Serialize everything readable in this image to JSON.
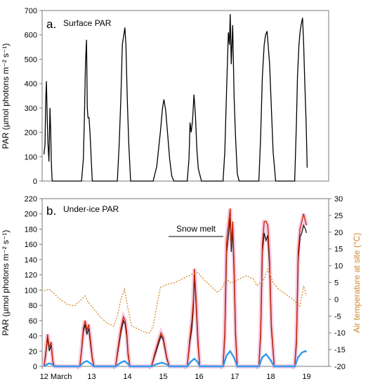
{
  "chart_data": [
    {
      "panel_label": "a.",
      "title": "Surface PAR",
      "type": "line",
      "ylabel": "PAR (µmol photons m⁻² s⁻¹)",
      "ylim": [
        0,
        700
      ],
      "yticks": [
        0,
        100,
        200,
        300,
        400,
        500,
        600,
        700
      ],
      "x_domain_days": [
        12,
        20
      ],
      "grid": false,
      "daily_peaks": [
        {
          "day": "12 March",
          "peak": 410
        },
        {
          "day": "13",
          "peak": 580
        },
        {
          "day": "14",
          "peak": 630
        },
        {
          "day": "15",
          "peak": 335
        },
        {
          "day": "16",
          "peak": 355
        },
        {
          "day": "17",
          "peak": 685
        },
        {
          "day": "18",
          "peak": 615
        },
        {
          "day": "19",
          "peak": 670
        }
      ],
      "series": [
        {
          "color": "#000000",
          "x": [
            12.05,
            12.08,
            12.1,
            12.12,
            12.14,
            12.16,
            12.19,
            12.22,
            12.24,
            12.26,
            12.28,
            12.32,
            13.1,
            13.15,
            13.18,
            13.21,
            13.24,
            13.26,
            13.28,
            13.31,
            13.34,
            13.37,
            13.4,
            13.45,
            14.1,
            14.15,
            14.2,
            14.24,
            14.28,
            14.31,
            14.34,
            14.38,
            14.42,
            14.47,
            15.1,
            15.2,
            15.3,
            15.36,
            15.4,
            15.45,
            15.5,
            15.56,
            15.62,
            15.68,
            16.05,
            16.1,
            16.13,
            16.16,
            16.2,
            16.24,
            16.28,
            16.32,
            16.36,
            16.45,
            17.05,
            17.1,
            17.15,
            17.18,
            17.2,
            17.23,
            17.25,
            17.28,
            17.32,
            17.36,
            17.4,
            17.45,
            17.5,
            18.05,
            18.1,
            18.15,
            18.2,
            18.24,
            18.28,
            18.31,
            18.35,
            18.4,
            18.45,
            18.52,
            19.05,
            19.1,
            19.13,
            19.17,
            19.2,
            19.23,
            19.27,
            19.3,
            19.33,
            19.37,
            19.4
          ],
          "y": [
            110,
            150,
            330,
            410,
            280,
            160,
            80,
            300,
            200,
            60,
            0,
            0,
            0,
            90,
            260,
            480,
            580,
            300,
            260,
            260,
            190,
            90,
            0,
            0,
            0,
            150,
            350,
            560,
            600,
            630,
            560,
            320,
            150,
            0,
            0,
            60,
            200,
            300,
            335,
            290,
            200,
            90,
            20,
            0,
            0,
            90,
            240,
            200,
            250,
            355,
            270,
            130,
            50,
            0,
            0,
            120,
            370,
            520,
            610,
            560,
            685,
            480,
            640,
            340,
            180,
            30,
            0,
            0,
            180,
            430,
            560,
            600,
            615,
            560,
            480,
            300,
            120,
            0,
            0,
            240,
            430,
            560,
            610,
            640,
            670,
            570,
            420,
            240,
            55
          ]
        }
      ]
    },
    {
      "panel_label": "b.",
      "title": "Under-ice PAR",
      "annotation": "Snow melt",
      "type": "line",
      "ylabel": "PAR (µmol photons m⁻² s⁻¹)",
      "y2label": "Air temperature at site (°C)",
      "ylim": [
        0,
        220
      ],
      "yticks": [
        0,
        20,
        40,
        60,
        80,
        100,
        120,
        140,
        160,
        180,
        200,
        220
      ],
      "y2lim": [
        -20,
        30
      ],
      "y2ticks": [
        -20,
        -15,
        -10,
        -5,
        0,
        5,
        10,
        15,
        20,
        25,
        30
      ],
      "xtick_labels": [
        "12 March",
        "13",
        "14",
        "15",
        "16",
        "17",
        "18",
        "19"
      ],
      "x_domain_days": [
        12,
        20
      ],
      "grid": false,
      "series": [
        {
          "color": "#1a1a1a",
          "x": [
            12.05,
            12.1,
            12.15,
            12.2,
            12.25,
            12.3,
            12.35,
            13.05,
            13.1,
            13.15,
            13.2,
            13.25,
            13.3,
            13.35,
            13.4,
            13.45,
            14.05,
            14.1,
            14.2,
            14.27,
            14.32,
            14.36,
            14.4,
            14.45,
            15.05,
            15.15,
            15.25,
            15.32,
            15.38,
            15.42,
            15.48,
            15.55,
            16.05,
            16.12,
            16.18,
            16.22,
            16.25,
            16.3,
            16.35,
            16.4,
            17.05,
            17.1,
            17.15,
            17.2,
            17.25,
            17.28,
            17.32,
            17.36,
            17.4,
            17.45,
            18.05,
            18.1,
            18.15,
            18.2,
            18.25,
            18.3,
            18.35,
            18.4,
            18.48,
            19.05,
            19.1,
            19.15,
            19.2,
            19.25,
            19.3,
            19.35,
            19.38
          ],
          "y": [
            0,
            15,
            38,
            20,
            28,
            5,
            0,
            0,
            20,
            45,
            55,
            42,
            50,
            30,
            10,
            0,
            0,
            15,
            45,
            60,
            55,
            40,
            15,
            0,
            0,
            15,
            30,
            40,
            35,
            25,
            10,
            0,
            0,
            30,
            50,
            75,
            120,
            80,
            30,
            0,
            0,
            40,
            150,
            170,
            195,
            150,
            180,
            120,
            40,
            0,
            0,
            40,
            150,
            175,
            165,
            172,
            130,
            50,
            0,
            0,
            30,
            140,
            170,
            175,
            185,
            180,
            175
          ]
        },
        {
          "color": "#cc2200",
          "x": [
            12.05,
            12.1,
            12.15,
            12.2,
            12.25,
            12.3,
            12.35,
            13.05,
            13.1,
            13.15,
            13.2,
            13.25,
            13.3,
            13.35,
            13.4,
            13.45,
            14.05,
            14.1,
            14.2,
            14.27,
            14.32,
            14.36,
            14.4,
            14.45,
            15.05,
            15.15,
            15.25,
            15.32,
            15.38,
            15.42,
            15.48,
            15.55,
            16.05,
            16.12,
            16.18,
            16.22,
            16.25,
            16.3,
            16.35,
            16.4,
            17.05,
            17.1,
            17.15,
            17.2,
            17.25,
            17.28,
            17.32,
            17.36,
            17.4,
            17.45,
            18.05,
            18.1,
            18.15,
            18.2,
            18.25,
            18.3,
            18.35,
            18.4,
            18.48,
            19.05,
            19.1,
            19.15,
            19.2,
            19.25,
            19.3,
            19.35,
            19.38
          ],
          "y": [
            0,
            18,
            42,
            25,
            32,
            6,
            0,
            0,
            22,
            50,
            60,
            48,
            55,
            35,
            12,
            0,
            0,
            18,
            50,
            65,
            60,
            45,
            18,
            0,
            0,
            18,
            34,
            44,
            38,
            28,
            12,
            0,
            0,
            35,
            60,
            85,
            128,
            88,
            35,
            0,
            0,
            45,
            165,
            185,
            207,
            160,
            190,
            130,
            45,
            0,
            0,
            45,
            160,
            190,
            190,
            185,
            140,
            55,
            0,
            0,
            35,
            150,
            180,
            190,
            200,
            190,
            185
          ]
        },
        {
          "color": "#3399ee",
          "x": [
            12.05,
            12.15,
            12.2,
            12.3,
            12.35,
            13.05,
            13.15,
            13.25,
            13.35,
            13.45,
            14.05,
            14.2,
            14.3,
            14.4,
            14.45,
            15.05,
            15.2,
            15.35,
            15.5,
            15.55,
            16.05,
            16.15,
            16.25,
            16.35,
            16.4,
            17.05,
            17.15,
            17.25,
            17.35,
            17.45,
            18.05,
            18.15,
            18.25,
            18.35,
            18.48,
            19.05,
            19.15,
            19.25,
            19.35,
            19.38
          ],
          "y": [
            0,
            3,
            4,
            2,
            0,
            0,
            5,
            7,
            4,
            0,
            0,
            5,
            7,
            3,
            0,
            0,
            3,
            5,
            2,
            0,
            0,
            6,
            10,
            5,
            0,
            0,
            14,
            20,
            12,
            0,
            0,
            12,
            16,
            10,
            0,
            0,
            12,
            18,
            20,
            19
          ]
        },
        {
          "color": "#d08a2a",
          "dashed": true,
          "axis": "y2",
          "x": [
            12.05,
            12.2,
            12.35,
            12.5,
            12.7,
            12.9,
            13.0,
            13.1,
            13.2,
            13.3,
            13.45,
            13.6,
            13.8,
            14.0,
            14.1,
            14.2,
            14.3,
            14.4,
            14.5,
            14.7,
            14.9,
            15.0,
            15.1,
            15.2,
            15.3,
            15.5,
            15.7,
            15.9,
            16.0,
            16.1,
            16.2,
            16.35,
            16.5,
            16.7,
            16.9,
            17.0,
            17.15,
            17.25,
            17.35,
            17.5,
            17.7,
            17.9,
            18.0,
            18.2,
            18.3,
            18.45,
            18.6,
            18.8,
            19.0,
            19.1,
            19.2,
            19.3,
            19.38
          ],
          "y": [
            2.5,
            3,
            1.5,
            0,
            -1.5,
            -2,
            -1,
            0,
            1,
            -1,
            -3,
            -5,
            -7,
            -8,
            -5,
            0,
            3,
            -3,
            -8,
            -9,
            -10,
            -10,
            -8,
            -2,
            3.5,
            4.5,
            5,
            6,
            6.5,
            7,
            7.5,
            8,
            6,
            4,
            2,
            3,
            6,
            5,
            5,
            6,
            7,
            6,
            4,
            6,
            9,
            5,
            3,
            1.5,
            0,
            -1,
            -2,
            4,
            1
          ]
        }
      ]
    }
  ]
}
